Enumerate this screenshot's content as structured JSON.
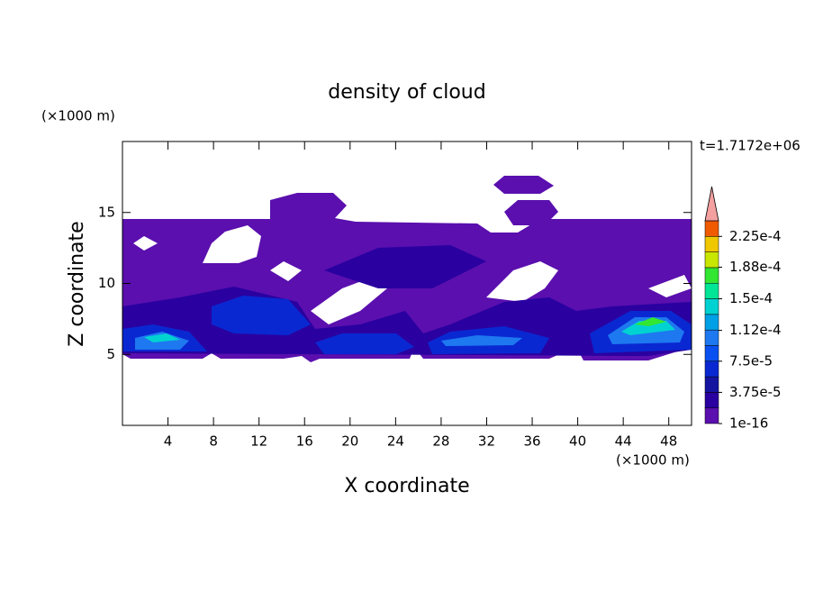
{
  "chart_data": {
    "type": "contour",
    "title": "density of cloud",
    "x_label": "X coordinate",
    "y_label": "Z coordinate",
    "x_unit": "(×1000 m)",
    "y_unit": "(×1000 m)",
    "time_label": "t=1.7172e+06",
    "xlim": [
      0,
      50
    ],
    "xticks": [
      4,
      8,
      12,
      16,
      20,
      24,
      28,
      32,
      36,
      40,
      44,
      48
    ],
    "ylim": [
      0,
      20
    ],
    "yticks": [
      5,
      10,
      15
    ],
    "colorbar": {
      "lim": [
        1e-16,
        0.00024375
      ],
      "colors": [
        "#5a0fae",
        "#2a00a0",
        "#1414a0",
        "#0a28d2",
        "#0a50f0",
        "#1e78f0",
        "#00a0e6",
        "#00d2d2",
        "#00e696",
        "#32e632",
        "#c8e600",
        "#f0c800",
        "#f05a00"
      ],
      "extend_color": "#f4a0a0",
      "ticks": [
        {
          "value": 1e-16,
          "label": "1e-16"
        },
        {
          "value": 3.75e-05,
          "label": "3.75e-5"
        },
        {
          "value": 7.5e-05,
          "label": "7.5e-5"
        },
        {
          "value": 0.000112,
          "label": "1.12e-4"
        },
        {
          "value": 0.00015,
          "label": "1.5e-4"
        },
        {
          "value": 0.000188,
          "label": "1.88e-4"
        },
        {
          "value": 0.000225,
          "label": "2.25e-4"
        }
      ]
    }
  }
}
